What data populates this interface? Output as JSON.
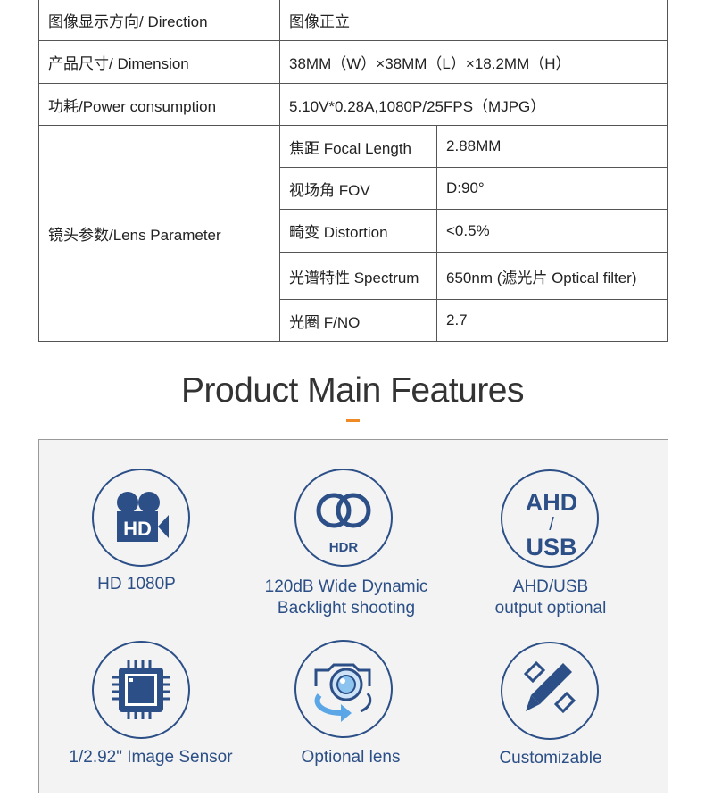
{
  "spec_table": {
    "rows": [
      {
        "label": "图像显示方向/ Direction",
        "value": "图像正立"
      },
      {
        "label": "产品尺寸/ Dimension",
        "value": "38MM（W）×38MM（L）×18.2MM（H）"
      },
      {
        "label": "功耗/Power consumption",
        "value": "5.10V*0.28A,1080P/25FPS（MJPG）"
      }
    ],
    "lens": {
      "label": "镜头参数/Lens Parameter",
      "items": [
        {
          "name": "焦距  Focal Length",
          "value": "2.88MM"
        },
        {
          "name": "视场角  FOV",
          "value": "D:90°"
        },
        {
          "name": "畸变 Distortion",
          "value": "<0.5%"
        },
        {
          "name": "光谱特性 Spectrum",
          "value": "650nm (滤光片 Optical filter)"
        },
        {
          "name": "光圈 F/NO",
          "value": "2.7"
        }
      ]
    }
  },
  "features": {
    "title": "Product Main Features",
    "accent_color": "#f08a24",
    "icon_color": "#2b4f86",
    "items": [
      {
        "icon": "hd-video-camera-icon",
        "icon_text": "HD",
        "line1": "HD 1080P",
        "line2": ""
      },
      {
        "icon": "hdr-rings-icon",
        "icon_text": "HDR",
        "line1": "120dB Wide Dynamic",
        "line2": "Backlight shooting"
      },
      {
        "icon": "ahd-usb-icon",
        "icon_text": "AHD / USB",
        "line1": "AHD/USB",
        "line2": "output optional"
      },
      {
        "icon": "chip-sensor-icon",
        "icon_text": "",
        "line1": "1/2.92\" Image Sensor",
        "line2": ""
      },
      {
        "icon": "camera-lens-rotate-icon",
        "icon_text": "",
        "line1": "Optional lens",
        "line2": ""
      },
      {
        "icon": "pencil-ruler-icon",
        "icon_text": "",
        "line1": "Customizable",
        "line2": ""
      }
    ]
  }
}
